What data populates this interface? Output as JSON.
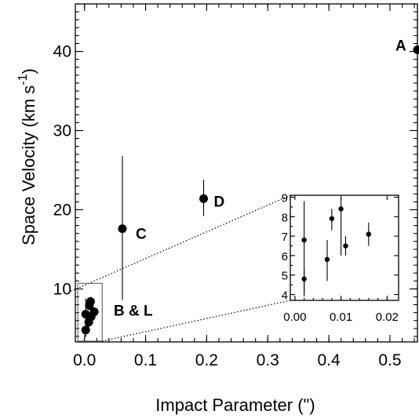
{
  "chart_data": [
    {
      "type": "scatter",
      "xlabel": "Impact Parameter (\")",
      "ylabel": "Space Velocity (km s",
      "ylabel_superscript": "-1",
      "ylabel_close": ")",
      "xlim": [
        -0.015,
        0.545
      ],
      "ylim": [
        3.3,
        46
      ],
      "x_ticks": [
        "0.0",
        "0.1",
        "0.2",
        "0.3",
        "0.4",
        "0.5"
      ],
      "y_ticks": [
        "10",
        "20",
        "30",
        "40"
      ],
      "grid": false,
      "points": [
        {
          "label": "A",
          "x": 0.545,
          "y": 40.2,
          "err_low": 36.2,
          "err_high": 44.2
        },
        {
          "label": "D",
          "x": 0.195,
          "y": 21.4,
          "err_low": 19.2,
          "err_high": 23.8
        },
        {
          "label": "C",
          "x": 0.062,
          "y": 17.6,
          "err_low": 8.6,
          "err_high": 26.8
        },
        {
          "label": "",
          "x": 0.002,
          "y": 4.8,
          "err_low": 4.1,
          "err_high": 5.3
        },
        {
          "label": "",
          "x": 0.002,
          "y": 6.8,
          "err_low": 3.9,
          "err_high": 8.8
        },
        {
          "label": "",
          "x": 0.007,
          "y": 5.8,
          "err_low": 4.7,
          "err_high": 6.8
        },
        {
          "label": "",
          "x": 0.008,
          "y": 7.9,
          "err_low": 7.3,
          "err_high": 8.4
        },
        {
          "label": "",
          "x": 0.01,
          "y": 8.4,
          "err_low": 6.0,
          "err_high": 9.0
        },
        {
          "label": "",
          "x": 0.011,
          "y": 6.5,
          "err_low": 6.0,
          "err_high": 7.0
        },
        {
          "label": "",
          "x": 0.016,
          "y": 7.1,
          "err_low": 6.5,
          "err_high": 7.7
        }
      ],
      "group_label": "B & L"
    },
    {
      "type": "scatter",
      "role": "inset",
      "xlim": [
        -0.001,
        0.0225
      ],
      "ylim": [
        3.7,
        9.1
      ],
      "x_ticks": [
        "0.00",
        "0.01",
        "0.02"
      ],
      "y_ticks": [
        "4",
        "5",
        "6",
        "7",
        "8",
        "9"
      ],
      "points": [
        {
          "x": 0.002,
          "y": 4.8,
          "err_low": 4.1,
          "err_high": 5.3
        },
        {
          "x": 0.002,
          "y": 6.8,
          "err_low": 3.9,
          "err_high": 8.8
        },
        {
          "x": 0.007,
          "y": 5.8,
          "err_low": 4.7,
          "err_high": 6.8
        },
        {
          "x": 0.008,
          "y": 7.9,
          "err_low": 7.3,
          "err_high": 8.4
        },
        {
          "x": 0.01,
          "y": 8.4,
          "err_low": 6.0,
          "err_high": 9.0
        },
        {
          "x": 0.011,
          "y": 6.5,
          "err_low": 6.0,
          "err_high": 7.0
        },
        {
          "x": 0.016,
          "y": 7.1,
          "err_low": 6.5,
          "err_high": 7.7
        }
      ]
    }
  ]
}
